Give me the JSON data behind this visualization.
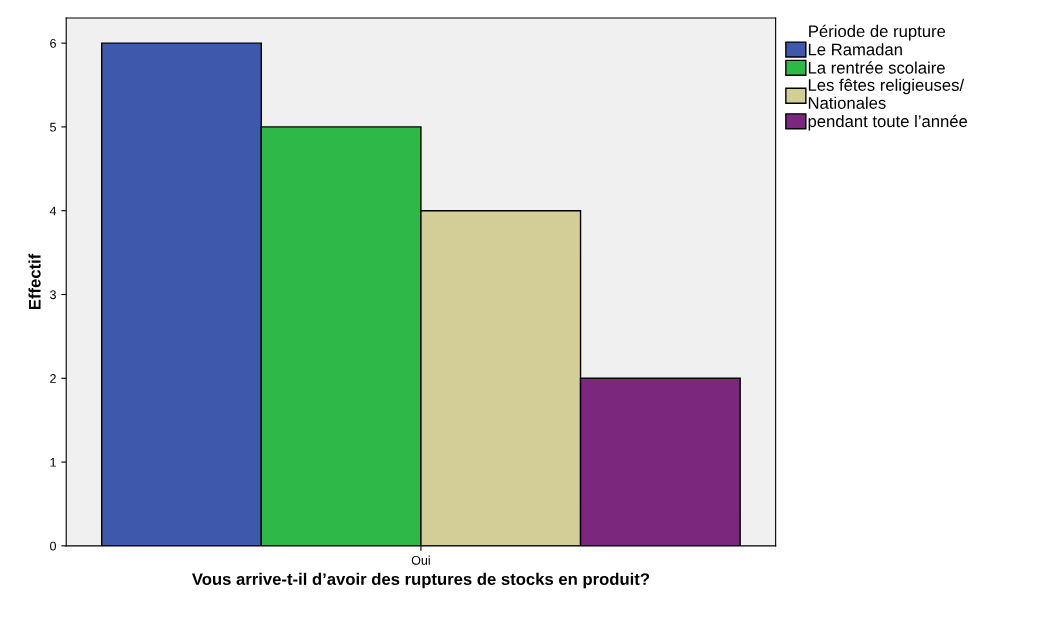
{
  "chart_data": {
    "type": "bar",
    "categories": [
      "Oui"
    ],
    "series": [
      {
        "name": "Le Ramadan",
        "color": "#3e58ac",
        "values": [
          6
        ]
      },
      {
        "name": "La rentrée scolaire",
        "color": "#2eb848",
        "values": [
          5
        ]
      },
      {
        "name": "Les fêtes religieuses/\nNationales",
        "color": "#d3ce97",
        "values": [
          4
        ]
      },
      {
        "name": "pendant toute l’année",
        "color": "#7b277e",
        "values": [
          2
        ]
      }
    ],
    "xlabel": "Vous arrive-t-il d’avoir des ruptures de stocks en produit?",
    "ylabel": "Effectif",
    "legend_title": "Période de rupture",
    "ylim": [
      0,
      6.3
    ],
    "yticks": [
      0,
      1,
      2,
      3,
      4,
      5,
      6
    ],
    "grid": false,
    "legend": "right"
  }
}
